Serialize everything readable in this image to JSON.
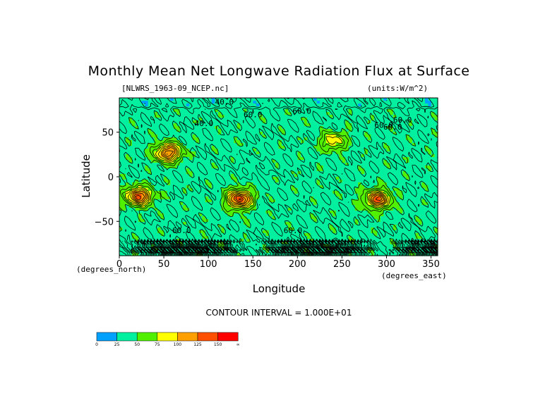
{
  "chart_data": {
    "type": "heatmap",
    "title": "Monthly Mean Net Longwave Radiation Flux at Surface",
    "file_label": "[NLWRS_1963-09_NCEP.nc]",
    "units_label": "(units:W/m^2)",
    "xlabel": "Longitude",
    "ylabel": "Latitude",
    "x_unit_label": "(degrees_east)",
    "y_unit_label": "(degrees_north)",
    "xlim": [
      0,
      357.5
    ],
    "ylim": [
      -88.5,
      88.5
    ],
    "x_ticks": [
      0,
      50,
      100,
      150,
      200,
      250,
      300,
      350
    ],
    "y_ticks": [
      50,
      0,
      -50
    ],
    "contour_interval_label": "CONTOUR INTERVAL = 1.000E+01",
    "contour_labels": [
      "40.0",
      "60.0",
      "60.0",
      "40.0",
      "60.0",
      "60.0",
      "60.0",
      "60.0",
      "60.0"
    ],
    "colorbar": {
      "levels": [
        "0",
        "25",
        "50",
        "75",
        "100",
        "125",
        "150",
        "∞"
      ],
      "colors": [
        "#00a0ff",
        "#00f0a0",
        "#50f000",
        "#ffff00",
        "#ffa000",
        "#ff5000",
        "#ff0000"
      ]
    },
    "field_features": [
      {
        "lon": 22,
        "lat": -22,
        "value": 135
      },
      {
        "lon": 135,
        "lat": -25,
        "value": 140
      },
      {
        "lon": 55,
        "lat": 27,
        "value": 130
      },
      {
        "lon": 240,
        "lat": 40,
        "value": 90
      },
      {
        "lon": 290,
        "lat": -25,
        "value": 130
      },
      {
        "lon": 150,
        "lat": 10,
        "value": 30
      }
    ]
  }
}
